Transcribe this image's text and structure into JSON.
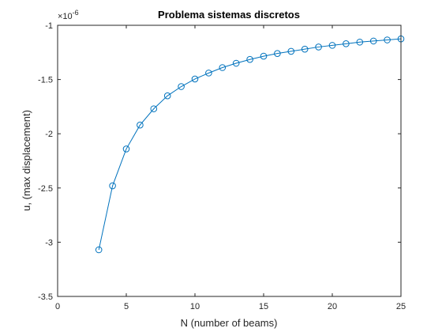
{
  "chart_data": {
    "type": "line",
    "title": "Problema sistemas discretos",
    "xlabel": "N (number of beams)",
    "ylabel": "u, (max displacement)",
    "xlim": [
      0,
      25
    ],
    "ylim": [
      -3.5,
      -1
    ],
    "y_multiplier_label": "×10",
    "y_multiplier_exponent": "-6",
    "x_ticks": [
      0,
      5,
      10,
      15,
      20,
      25
    ],
    "y_ticks": [
      -3.5,
      -3,
      -2.5,
      -2,
      -1.5,
      -1
    ],
    "x_tick_labels": [
      "0",
      "5",
      "10",
      "15",
      "20",
      "25"
    ],
    "y_tick_labels": [
      "-3.5",
      "-3",
      "-2.5",
      "-2",
      "-1.5",
      "-1"
    ],
    "grid": false,
    "line_color": "#0072BD",
    "marker": "circle",
    "series": [
      {
        "x": [
          3,
          4,
          5,
          6,
          7,
          8,
          9,
          10,
          11,
          12,
          13,
          14,
          15,
          16,
          17,
          18,
          19,
          20,
          21,
          22,
          23,
          24,
          25
        ],
        "values": [
          -3.07,
          -2.48,
          -2.14,
          -1.92,
          -1.77,
          -1.65,
          -1.565,
          -1.495,
          -1.44,
          -1.39,
          -1.35,
          -1.315,
          -1.285,
          -1.26,
          -1.24,
          -1.22,
          -1.2,
          -1.185,
          -1.17,
          -1.155,
          -1.145,
          -1.135,
          -1.125
        ]
      }
    ]
  }
}
